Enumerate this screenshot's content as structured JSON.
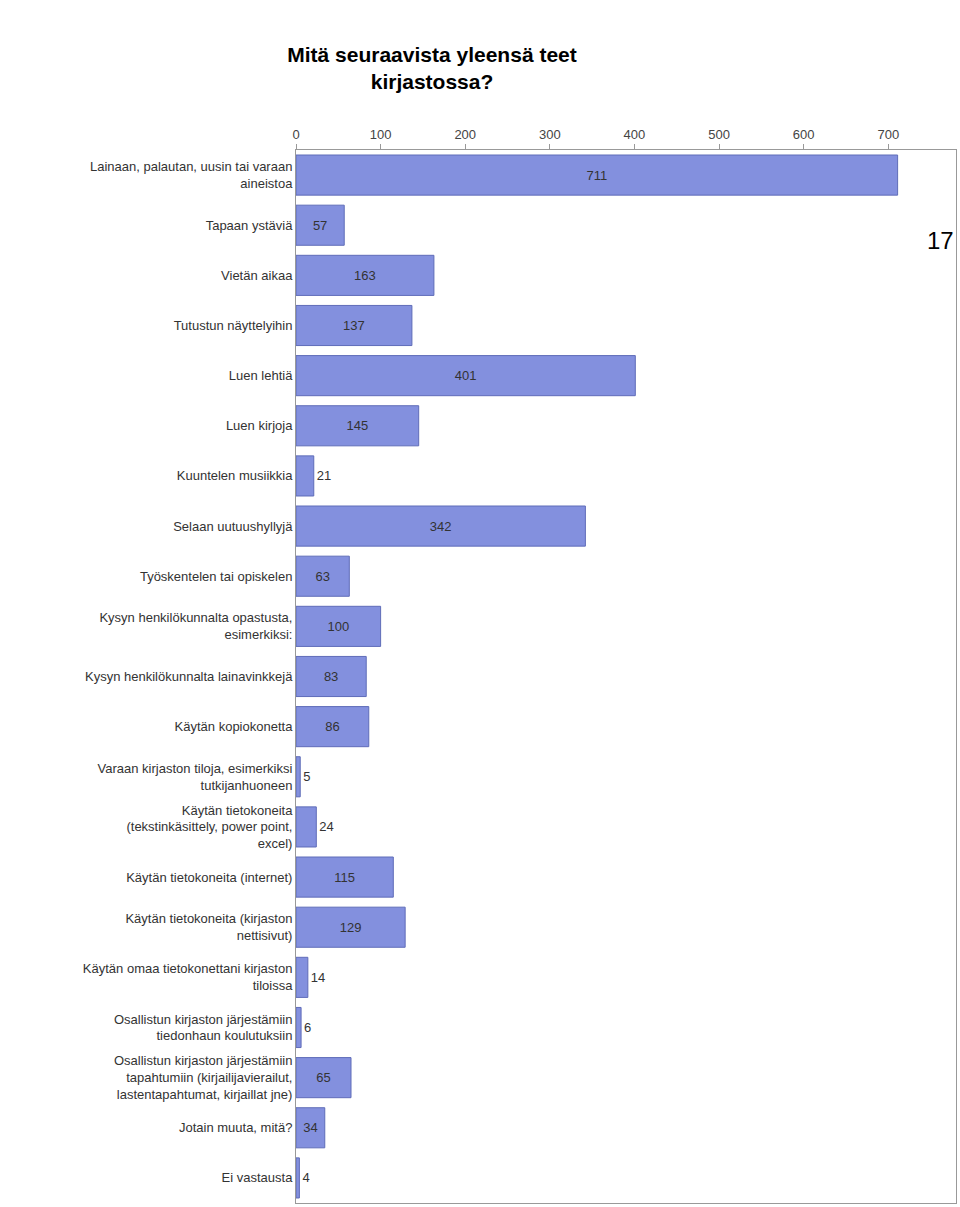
{
  "chart_data": {
    "type": "bar",
    "orientation": "horizontal",
    "title": "Mitä seuraavista yleensä teet kirjastossa?",
    "annotations": [
      "17"
    ],
    "categories": [
      "Lainaan, palautan, uusin tai varaan aineistoa",
      "Tapaan ystäviä",
      "Vietän aikaa",
      "Tutustun näyttelyihin",
      "Luen lehtiä",
      "Luen kirjoja",
      "Kuuntelen musiikkia",
      "Selaan uutuushyllyjä",
      "Työskentelen tai opiskelen",
      "Kysyn henkilökunnalta opastusta, esimerkiksi:",
      "Kysyn henkilökunnalta lainavinkkejä",
      "Käytän kopiokonetta",
      "Varaan kirjaston tiloja, esimerkiksi tutkijanhuoneen",
      "Käytän tietokoneita (tekstinkäsittely, power point, excel)",
      "Käytän tietokoneita (internet)",
      "Käytän tietokoneita (kirjaston nettisivut)",
      "Käytän omaa tietokonettani kirjaston tiloissa",
      "Osallistun kirjaston järjestämiin tiedonhaun koulutuksiin",
      "Osallistun kirjaston järjestämiin tapahtumiin (kirjailijavierailut, lastentapahtumat, kirjaillat jne)",
      "Jotain muuta, mitä?",
      "Ei vastausta"
    ],
    "values": [
      711,
      57,
      163,
      137,
      401,
      145,
      21,
      342,
      63,
      100,
      83,
      86,
      5,
      24,
      115,
      129,
      14,
      6,
      65,
      34,
      4
    ],
    "color": "#8390de",
    "xlim": [
      0,
      780
    ],
    "xticks": [
      0,
      100,
      200,
      300,
      400,
      500,
      600,
      700
    ],
    "grid": false,
    "data_labels": true
  }
}
